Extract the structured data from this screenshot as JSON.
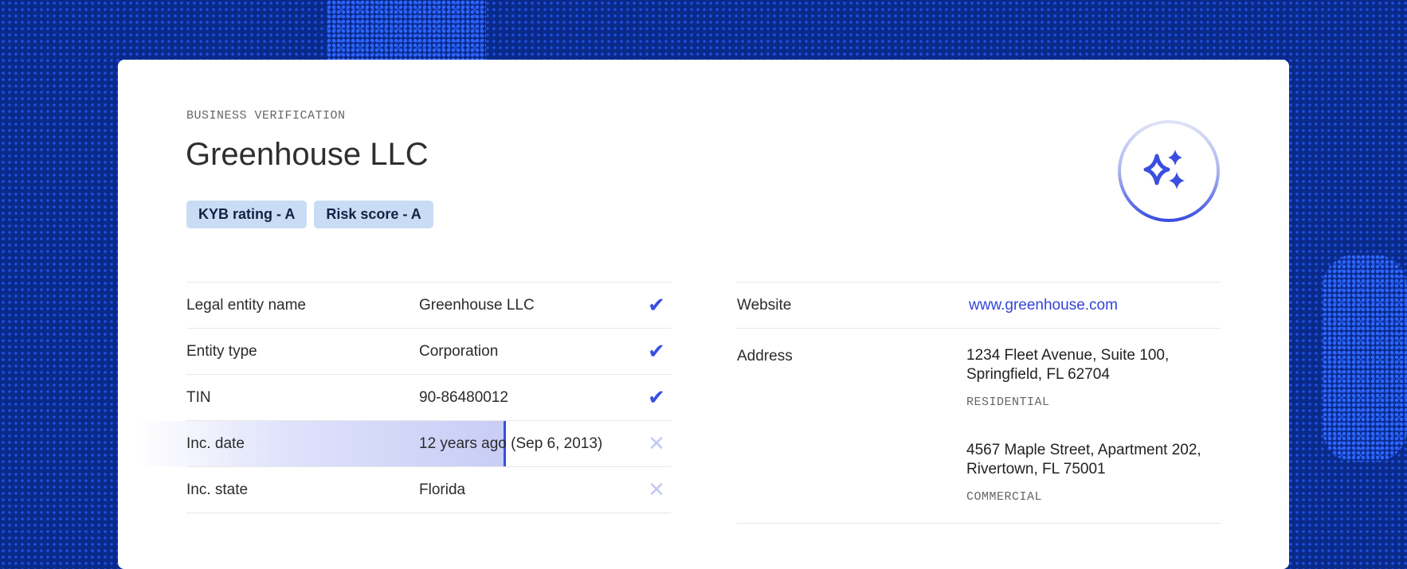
{
  "header": {
    "eyebrow": "BUSINESS VERIFICATION",
    "title": "Greenhouse LLC"
  },
  "badges": [
    "KYB rating - A",
    "Risk score - A"
  ],
  "ai_icon": "sparkles-icon",
  "colors": {
    "accent": "#3a4ee0",
    "badge_bg": "#c8dcf5",
    "background": "#0a2a8a"
  },
  "checks": [
    {
      "label": "Legal entity name",
      "value": "Greenhouse LLC",
      "status": "verified"
    },
    {
      "label": "Entity type",
      "value": "Corporation",
      "status": "verified"
    },
    {
      "label": "TIN",
      "value": "90-86480012",
      "status": "verified"
    },
    {
      "label": "Inc. date",
      "value": "12 years ago (Sep 6, 2013)",
      "status": "failed"
    },
    {
      "label": "Inc. state",
      "value": "Florida",
      "status": "failed"
    }
  ],
  "details": {
    "website_label": "Website",
    "website": "www.greenhouse.com",
    "address_label": "Address",
    "addresses": [
      {
        "line": "1234 Fleet Avenue, Suite 100, Springfield, FL 62704",
        "type": "RESIDENTIAL"
      },
      {
        "line": "4567 Maple Street, Apartment 202, Rivertown, FL 75001",
        "type": "COMMERCIAL"
      }
    ]
  }
}
